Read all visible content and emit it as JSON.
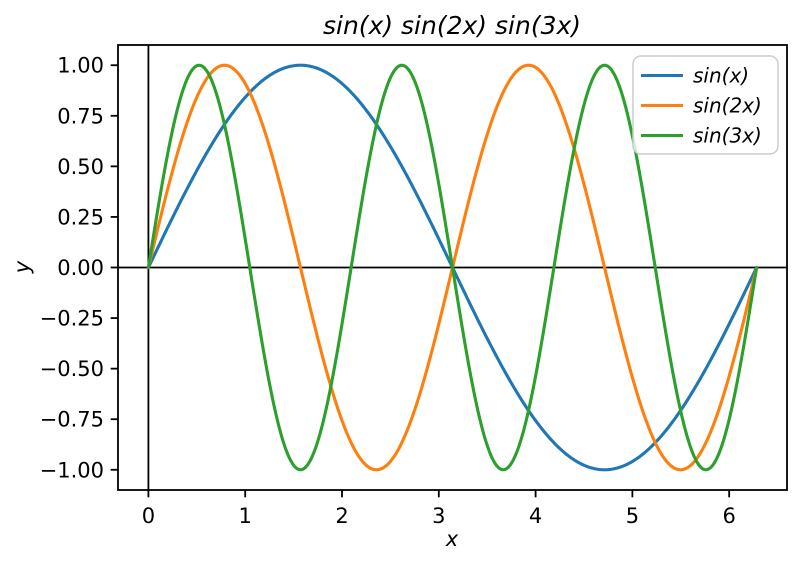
{
  "figure": {
    "title": "sin(x) sin(2x) sin(3x)",
    "xlabel": "x",
    "ylabel": "y"
  },
  "chart_data": {
    "type": "line",
    "title": "sin(x) sin(2x) sin(3x)",
    "xlabel": "x",
    "ylabel": "y",
    "xlim": [
      -0.3142,
      6.5973
    ],
    "ylim": [
      -1.1,
      1.1
    ],
    "x_range": [
      0,
      6.2832
    ],
    "grid": false,
    "frame_color": "#000000",
    "axis_lines": {
      "horizontal_y": 0,
      "vertical_x": 0,
      "color": "#000000"
    },
    "x_ticks": [
      {
        "value": 0,
        "label": "0"
      },
      {
        "value": 1,
        "label": "1"
      },
      {
        "value": 2,
        "label": "2"
      },
      {
        "value": 3,
        "label": "3"
      },
      {
        "value": 4,
        "label": "4"
      },
      {
        "value": 5,
        "label": "5"
      },
      {
        "value": 6,
        "label": "6"
      }
    ],
    "y_ticks": [
      {
        "value": 1.0,
        "label": "1.00"
      },
      {
        "value": 0.75,
        "label": "0.75"
      },
      {
        "value": 0.5,
        "label": "0.50"
      },
      {
        "value": 0.25,
        "label": "0.25"
      },
      {
        "value": 0.0,
        "label": "0.00"
      },
      {
        "value": -0.25,
        "label": "−0.25"
      },
      {
        "value": -0.5,
        "label": "−0.50"
      },
      {
        "value": -0.75,
        "label": "−0.75"
      },
      {
        "value": -1.0,
        "label": "−1.00"
      }
    ],
    "legend": {
      "position": "upper right",
      "border_color": "#cccccc",
      "background": "#ffffff"
    },
    "series": [
      {
        "name": "sin(x)",
        "frequency": 1,
        "color": "#1f77b4"
      },
      {
        "name": "sin(2x)",
        "frequency": 2,
        "color": "#ff7f0e"
      },
      {
        "name": "sin(3x)",
        "frequency": 3,
        "color": "#2ca02c"
      }
    ],
    "sampled_points": {
      "x": [
        0,
        0.314,
        0.628,
        0.942,
        1.257,
        1.571,
        1.885,
        2.199,
        2.513,
        2.827,
        3.142,
        3.456,
        3.77,
        4.084,
        4.398,
        4.712,
        5.027,
        5.341,
        5.655,
        5.969,
        6.283
      ],
      "sin_x": [
        0,
        0.309,
        0.588,
        0.809,
        0.951,
        1.0,
        0.951,
        0.809,
        0.588,
        0.309,
        0,
        -0.309,
        -0.588,
        -0.809,
        -0.951,
        -1.0,
        -0.951,
        -0.809,
        -0.588,
        -0.309,
        0
      ],
      "sin_2x": [
        0,
        0.588,
        0.951,
        0.951,
        0.588,
        0,
        -0.588,
        -0.951,
        -0.951,
        -0.588,
        0,
        0.588,
        0.951,
        0.951,
        0.588,
        0,
        -0.588,
        -0.951,
        -0.951,
        -0.588,
        0
      ],
      "sin_3x": [
        0,
        0.809,
        0.951,
        0.309,
        -0.588,
        -1.0,
        -0.588,
        0.309,
        0.951,
        0.809,
        0,
        -0.809,
        -0.951,
        -0.309,
        0.588,
        1.0,
        0.588,
        -0.309,
        -0.951,
        -0.809,
        0
      ]
    }
  }
}
